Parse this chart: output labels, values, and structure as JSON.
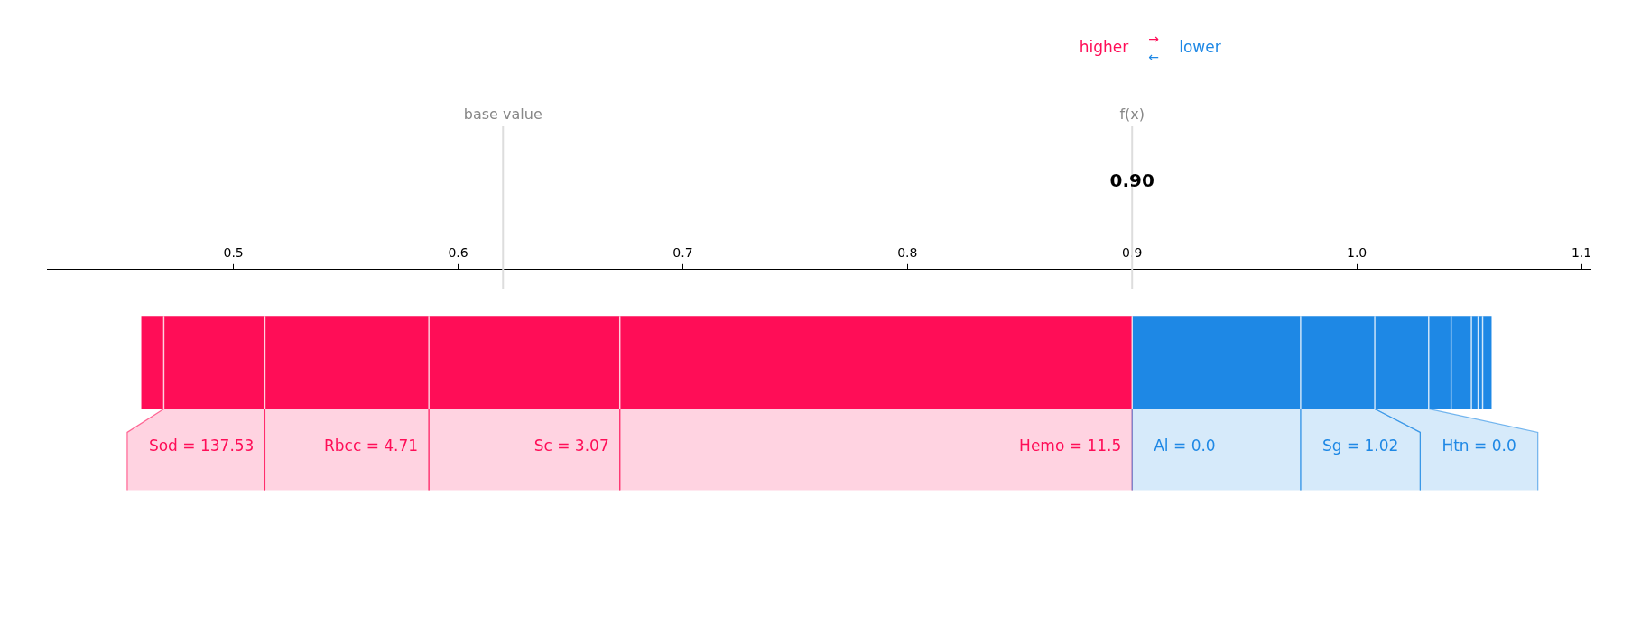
{
  "chart_data": {
    "type": "bar",
    "orientation": "horizontal",
    "categories": [
      null
    ],
    "xlim": [
      0.417,
      1.104
    ],
    "xticks": [
      0.5,
      0.6,
      0.7,
      0.8,
      0.9,
      {
        "value": 1.0,
        "label": "1.0"
      },
      1.1
    ],
    "series": [
      {
        "color": "#ff0d57",
        "base": [
          0.459
        ],
        "values": [
          0.01
        ]
      },
      {
        "name": "Sod = 137.53",
        "color": "#ff0d57",
        "base": [
          0.469
        ],
        "values": [
          0.045
        ]
      },
      {
        "name": "Rbcc = 4.71",
        "color": "#ff0d57",
        "base": [
          0.514
        ],
        "values": [
          0.073
        ]
      },
      {
        "name": "Sc = 3.07",
        "color": "#ff0d57",
        "base": [
          0.587
        ],
        "values": [
          0.085
        ]
      },
      {
        "name": "Hemo = 11.5",
        "color": "#ff0d57",
        "base": [
          0.672
        ],
        "values": [
          0.228
        ]
      },
      {
        "name": "Al = 0.0",
        "color": "#1e88e5",
        "base": [
          0.9
        ],
        "values": [
          0.075
        ]
      },
      {
        "name": "Sg = 1.02",
        "color": "#1e88e5",
        "base": [
          0.975
        ],
        "values": [
          0.033
        ]
      },
      {
        "name": "Htn = 0.0",
        "color": "#1e88e5",
        "base": [
          1.008
        ],
        "values": [
          0.024
        ]
      },
      {
        "color": "#1e88e5",
        "base": [
          1.032
        ],
        "values": [
          0.01
        ]
      },
      {
        "color": "#1e88e5",
        "base": [
          1.042
        ],
        "values": [
          0.009
        ]
      },
      {
        "color": "#1e88e5",
        "base": [
          1.051
        ],
        "values": [
          0.003
        ]
      },
      {
        "color": "#1e88e5",
        "base": [
          1.054
        ],
        "values": [
          0.002
        ]
      },
      {
        "color": "#1e88e5",
        "base": [
          1.056
        ],
        "values": [
          0.004
        ]
      }
    ],
    "ref_lines": [
      {
        "axis": "x",
        "value": 0.62,
        "label": "base value",
        "color": "#dddddd"
      },
      {
        "axis": "x",
        "value": 0.9,
        "label": "f(x)",
        "color": "#dddddd"
      }
    ],
    "annotations": [
      "higher",
      "→",
      "←",
      "lower",
      {
        "text": "0.90",
        "x": 0.9
      }
    ]
  }
}
